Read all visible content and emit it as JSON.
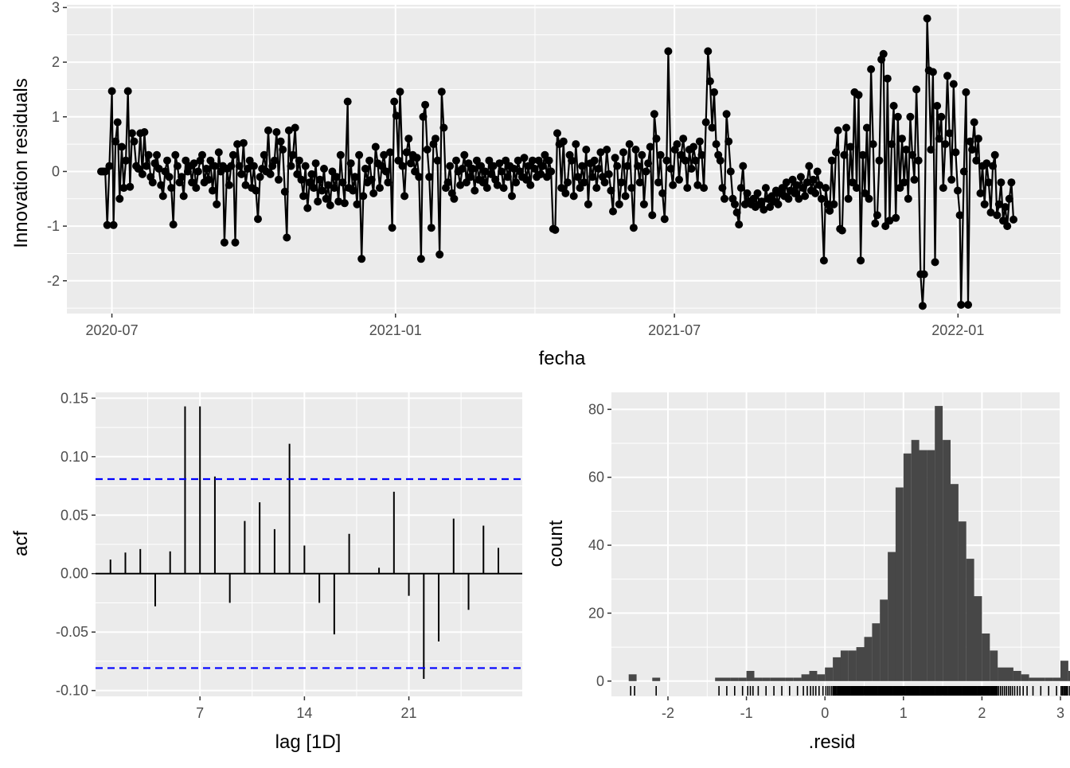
{
  "chart_data": [
    {
      "type": "line",
      "xlabel": "fecha",
      "ylabel": "Innovation residuals",
      "ylim": [
        -2.6,
        3.05
      ],
      "yticks": [
        -2,
        -1,
        0,
        1,
        2,
        3
      ],
      "xticks": [
        "2020-07",
        "2021-01",
        "2021-07",
        "2022-01"
      ],
      "x_range": [
        "2020-06-24",
        "2022-02-06"
      ],
      "points_shown": true,
      "colors": {
        "line": "#000000",
        "panel": "#ebebeb",
        "grid": "#ffffff"
      },
      "notable_points": [
        {
          "x": "2020-06-28",
          "y": -0.98
        },
        {
          "x": "2020-07-01",
          "y": 1.47
        },
        {
          "x": "2020-09-12",
          "y": -1.3
        },
        {
          "x": "2020-12-01",
          "y": 1.28
        },
        {
          "x": "2020-12-10",
          "y": -1.6
        },
        {
          "x": "2021-01-04",
          "y": 1.46
        },
        {
          "x": "2021-06-27",
          "y": 2.2
        },
        {
          "x": "2021-10-06",
          "y": -1.63
        },
        {
          "x": "2021-12-10",
          "y": -1.88
        },
        {
          "x": "2021-12-11",
          "y": -2.46
        },
        {
          "x": "2021-12-12",
          "y": 2.8
        },
        {
          "x": "2022-01-03",
          "y": -2.44
        }
      ],
      "series": [
        {
          "values": [
            0.0,
            0.0,
            0.0,
            0.0,
            0.1,
            0.4,
            -0.98,
            0.55,
            0.9,
            -0.5,
            0.45,
            -0.3,
            0.2,
            1.47,
            -0.28,
            0.7,
            0.55,
            0.1,
            0.05,
            0.7,
            -0.05,
            0.72,
            0.1,
            0.3,
            -0.1,
            -0.2,
            0.15,
            0.3,
            0.05,
            -0.25,
            -0.45,
            0.0,
            0.2,
            -0.1,
            -0.3,
            -0.97,
            0.3,
            0.1,
            -0.2,
            -0.1,
            -0.45,
            0.2,
            0.0,
            0.1,
            -0.2,
            0.15,
            -0.3,
            0.0,
            0.2,
            0.3,
            -0.2,
            0.05,
            -0.15,
            0.2,
            -0.35,
            0.1,
            -0.6,
            0.35,
            0.0,
            0.1,
            -0.1,
            0.05,
            -0.25,
            0.1,
            0.3,
            -1.3,
            0.5,
            0.1,
            -0.05,
            0.52,
            -0.25,
            0.05,
            0.2,
            -0.3,
            0.1,
            -0.35,
            -0.87,
            -0.1,
            0.05,
            0.3,
            0.0,
            0.75,
            -0.05,
            0.1,
            0.2,
            0.72,
            -0.15,
            0.55,
            0.4,
            -0.37,
            -1.21,
            0.75,
            0.1,
            0.3,
            0.8,
            -0.05,
            0.2,
            -0.15,
            -0.45,
            0.1,
            -0.67,
            -0.2,
            -0.05,
            -0.3,
            0.15,
            -0.55,
            -0.15,
            -0.35,
            0.05,
            -0.5,
            -0.25,
            -0.62,
            0.0,
            -0.3,
            -0.1,
            -0.55,
            0.3,
            -0.2,
            -0.58,
            0.0,
            -0.3,
            0.15,
            -0.35,
            -0.1,
            -0.6,
            0.3,
            0.1,
            -0.45,
            0.05,
            -0.2,
            0.2,
            -0.15,
            -0.4,
            0.45,
            0.15,
            -0.3,
            0.1,
            0.3,
            0.0,
            -0.2,
            0.35,
            -1.03,
            1.28,
            1.02,
            0.2,
            0.4,
            0.1,
            -0.45,
            0.35,
            0.6,
            0.15,
            0.3,
            0.0,
            0.25,
            -0.1,
            -1.6,
            1.0,
            1.22,
            0.4,
            -0.1,
            -1.03,
            0.5,
            0.6,
            0.2,
            -1.52,
            1.46,
            0.8,
            -0.3,
            -0.2,
            0.1,
            -0.4,
            -0.5,
            0.2,
            0.0,
            -0.25,
            0.05,
            0.3,
            -0.2,
            0.15,
            -0.1,
            0.05,
            -0.35,
            0.2,
            -0.15,
            0.1,
            -0.2,
            0.0,
            -0.3,
            0.2,
            -0.05,
            0.1,
            -0.15,
            -0.25,
            0.15,
            0.0,
            -0.3,
            0.2,
            -0.1,
            0.1,
            -0.45,
            0.05,
            -0.2,
            0.2,
            0.0,
            -0.1,
            0.25,
            -0.15,
            0.1,
            -0.25,
            0.2,
            0.05,
            -0.1,
            0.2,
            -0.05,
            0.1,
            0.3,
            -0.1,
            0.2,
            0.0,
            -1.05,
            -1.07,
            0.7,
            0.5,
            -0.3,
            0.55,
            -0.4,
            -0.2,
            0.3,
            0.2,
            -0.45,
            0.5,
            -0.1,
            -0.3,
            0.1,
            -0.2,
            0.4,
            -0.6,
            0.15,
            -0.1,
            0.2,
            -0.3,
            0.05,
            0.35,
            -0.1,
            -0.2,
            0.4,
            -0.05,
            -0.35,
            -0.73,
            0.25,
            0.1,
            -0.6,
            -0.2,
            0.35,
            -0.45,
            0.1,
            0.5,
            -0.3,
            -1.03,
            0.4,
            0.1,
            -0.2,
            0.3,
            -0.6,
            0.0,
            0.15,
            0.45,
            -0.8,
            1.05,
            0.6,
            -0.2,
            0.3,
            -0.4,
            -0.87,
            0.2,
            0.35,
            0.05,
            -0.25,
            0.4,
            0.5,
            -0.15,
            0.3,
            0.6,
            0.2,
            -0.3,
            0.4,
            0.05,
            0.45,
            0.2,
            -0.25,
            0.55,
            0.3,
            -0.3,
            0.9,
            2.2,
            1.65,
            0.8,
            1.45,
            0.5,
            0.3,
            0.2,
            -0.3,
            -0.5,
            1.05,
            0.55,
            0.0,
            -0.5,
            -0.6,
            -0.75,
            -0.97,
            -0.3,
            0.1,
            -0.6,
            -0.4,
            -0.55,
            -0.6,
            -0.5,
            -0.65,
            -0.4,
            -0.6,
            -0.55,
            -0.7,
            -0.3,
            -0.5,
            -0.65,
            -0.45,
            -0.55,
            -0.35,
            -0.6,
            -0.4,
            -0.3,
            -0.45,
            -0.2,
            -0.5,
            -0.35,
            -0.15,
            -0.4,
            -0.25,
            -0.5,
            -0.1,
            -0.3,
            -0.45,
            -0.2,
            0.1,
            -0.35,
            -0.15,
            -0.4,
            0.0,
            -0.25,
            -0.5,
            0.15,
            -0.3,
            -0.6,
            -0.72,
            0.2,
            -0.6,
            0.35,
            0.75,
            -1.05,
            -1.08,
            0.3,
            0.8,
            -0.5,
            0.45,
            -0.2,
            1.45,
            -0.3,
            1.4,
            -1.63,
            0.3,
            -0.4,
            0.8,
            -0.5,
            1.87,
            0.5,
            -0.95,
            -0.8,
            0.2,
            2.05,
            2.15,
            -1.0,
            1.7,
            -0.9,
            0.5,
            1.2,
            -0.85,
            1.0,
            -0.3,
            0.6,
            -0.2,
            0.4,
            -0.5,
            1.0,
            0.3,
            -0.15,
            1.5,
            0.2,
            -1.88,
            -2.46,
            2.8,
            -0.9,
            1.85,
            0.4,
            1.82,
            -1.66,
            1.2,
            0.6,
            1.0,
            -0.3,
            0.5,
            1.75,
            0.7,
            -0.15,
            1.6,
            0.35,
            -0.35,
            -0.8,
            -2.18,
            0.0,
            1.45,
            -2.44,
            0.55,
            0.4,
            0.9,
            0.2,
            0.6,
            -0.4,
            0.1,
            -0.6,
            0.15,
            -0.2,
            -0.75,
            0.1,
            0.3,
            -0.8,
            -0.6,
            -0.2,
            -0.9,
            -0.65,
            -1.0,
            -0.5,
            -0.2,
            -0.88
          ]
        }
      ]
    },
    {
      "type": "bar",
      "xlabel": "lag [1D]",
      "ylabel": "acf",
      "xticks": [
        7,
        14,
        21
      ],
      "yticks": [
        -0.1,
        -0.05,
        0.0,
        0.05,
        0.1,
        0.15
      ],
      "ylim": [
        -0.105,
        0.155
      ],
      "xlim": [
        0.0,
        28.6
      ],
      "confidence_bound": 0.0808,
      "colors": {
        "spike": "#000000",
        "bound": "#0000ff",
        "panel": "#ebebeb"
      },
      "lags": [
        1,
        2,
        3,
        4,
        5,
        6,
        7,
        8,
        9,
        10,
        11,
        12,
        13,
        14,
        15,
        16,
        17,
        18,
        19,
        20,
        21,
        22,
        23,
        24,
        25,
        26,
        27,
        28
      ],
      "values": [
        0.012,
        0.018,
        0.021,
        -0.028,
        0.019,
        0.143,
        0.143,
        0.083,
        -0.025,
        0.045,
        0.061,
        0.038,
        0.111,
        0.024,
        -0.025,
        -0.052,
        0.034,
        0.0,
        0.005,
        0.07,
        -0.019,
        -0.09,
        -0.058,
        0.047,
        -0.031,
        0.041,
        0.022,
        0.0
      ]
    },
    {
      "type": "histogram",
      "xlabel": ".resid",
      "ylabel": "count",
      "xticks": [
        -2,
        -1,
        0,
        1,
        2,
        3
      ],
      "yticks": [
        0,
        20,
        40,
        60,
        80
      ],
      "xlim": [
        -2.72,
        3.0
      ],
      "ylim": [
        -4.5,
        85
      ],
      "bin_width": 0.1,
      "colors": {
        "bar": "#474747",
        "panel": "#ebebeb"
      },
      "bins_start": -2.5,
      "counts": [
        2,
        0,
        0,
        1,
        0,
        0,
        0,
        0,
        0,
        0,
        0,
        1,
        1,
        1,
        1,
        3,
        1,
        1,
        1,
        1,
        1,
        1,
        2,
        3,
        2,
        4,
        7,
        9,
        9,
        10,
        13,
        17,
        24,
        38,
        57,
        67,
        71,
        68,
        68,
        81,
        71,
        58,
        47,
        36,
        25,
        14,
        9,
        4,
        4,
        3,
        2,
        1,
        1,
        1,
        1,
        6,
        3,
        2,
        2,
        1,
        1,
        3,
        1,
        1,
        1,
        3,
        1,
        1,
        1,
        1,
        1,
        1,
        1,
        0,
        0,
        0,
        0,
        0,
        0,
        0,
        0,
        0,
        0,
        0,
        0,
        0,
        0,
        0,
        0,
        0,
        0,
        0,
        0,
        0,
        0,
        0,
        0,
        0,
        0,
        0,
        0,
        0,
        0,
        0,
        0,
        0,
        0,
        0,
        0,
        0,
        0,
        0,
        0,
        0,
        0,
        0,
        0,
        0,
        0,
        0,
        0,
        0,
        0,
        0,
        0,
        1
      ],
      "rug": true
    }
  ]
}
